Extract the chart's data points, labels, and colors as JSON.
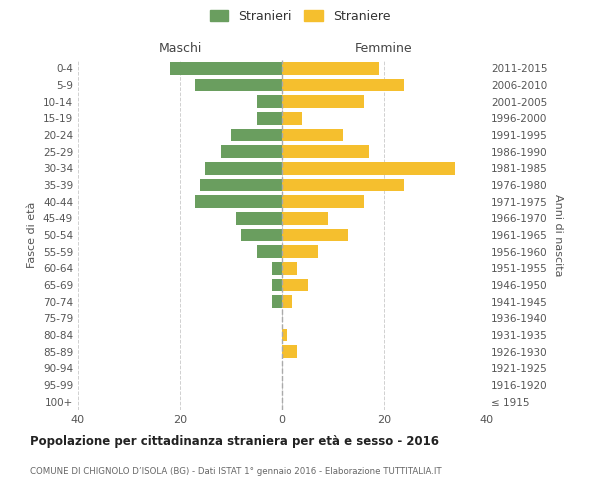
{
  "age_groups": [
    "100+",
    "95-99",
    "90-94",
    "85-89",
    "80-84",
    "75-79",
    "70-74",
    "65-69",
    "60-64",
    "55-59",
    "50-54",
    "45-49",
    "40-44",
    "35-39",
    "30-34",
    "25-29",
    "20-24",
    "15-19",
    "10-14",
    "5-9",
    "0-4"
  ],
  "birth_years": [
    "≤ 1915",
    "1916-1920",
    "1921-1925",
    "1926-1930",
    "1931-1935",
    "1936-1940",
    "1941-1945",
    "1946-1950",
    "1951-1955",
    "1956-1960",
    "1961-1965",
    "1966-1970",
    "1971-1975",
    "1976-1980",
    "1981-1985",
    "1986-1990",
    "1991-1995",
    "1996-2000",
    "2001-2005",
    "2006-2010",
    "2011-2015"
  ],
  "males": [
    0,
    0,
    0,
    0,
    0,
    0,
    2,
    2,
    2,
    5,
    8,
    9,
    17,
    16,
    15,
    12,
    10,
    5,
    5,
    17,
    22
  ],
  "females": [
    0,
    0,
    0,
    3,
    1,
    0,
    2,
    5,
    3,
    7,
    13,
    9,
    16,
    24,
    34,
    17,
    12,
    4,
    16,
    24,
    19
  ],
  "male_color": "#6a9e5f",
  "female_color": "#f5bf2e",
  "background_color": "#ffffff",
  "grid_color": "#d0d0d0",
  "title": "Popolazione per cittadinanza straniera per età e sesso - 2016",
  "subtitle": "COMUNE DI CHIGNOLO D’ISOLA (BG) - Dati ISTAT 1° gennaio 2016 - Elaborazione TUTTITALIA.IT",
  "xlabel_left": "Maschi",
  "xlabel_right": "Femmine",
  "ylabel_left": "Fasce di età",
  "ylabel_right": "Anni di nascita",
  "legend_male": "Stranieri",
  "legend_female": "Straniere",
  "xlim": [
    -40,
    40
  ],
  "xticks": [
    -40,
    -20,
    0,
    20,
    40
  ],
  "xticklabels": [
    "40",
    "20",
    "0",
    "20",
    "40"
  ]
}
